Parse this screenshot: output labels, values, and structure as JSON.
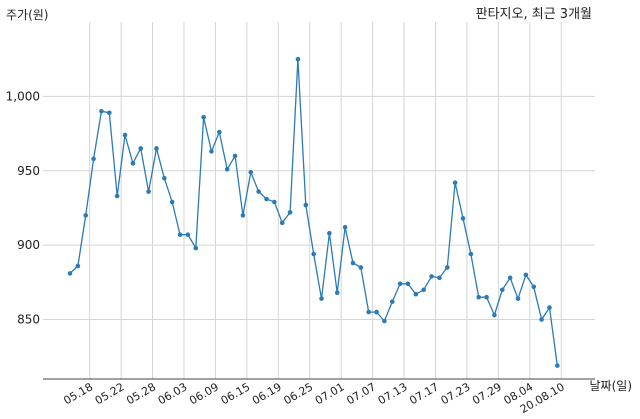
{
  "chart_data": {
    "type": "line",
    "title": "판타지오, 최근 3개월",
    "ylabel": "주가(원)",
    "xlabel": "날짜(일)",
    "ylim": [
      810,
      1050
    ],
    "yticks": [
      850,
      900,
      950,
      1000
    ],
    "ytick_labels": [
      "850",
      "900",
      "950",
      "1,000"
    ],
    "grid": true,
    "colors": {
      "line": "#2c7bb6",
      "grid": "#d5d5d5",
      "axis": "#444444"
    },
    "x_tick_labels": [
      "05.18",
      "05.22",
      "05.28",
      "06.03",
      "06.09",
      "06.15",
      "06.19",
      "06.25",
      "07.01",
      "07.07",
      "07.13",
      "07.17",
      "07.23",
      "07.29",
      "08.04",
      "20.08.10"
    ],
    "x_tick_positions": [
      2.5,
      6.5,
      10.5,
      14.5,
      18.5,
      22.5,
      26.5,
      30.5,
      34.5,
      38.5,
      42.5,
      46.5,
      50.5,
      54.5,
      58.5,
      62.5
    ],
    "series": [
      {
        "values": [
          881,
          886,
          920,
          958,
          990,
          989,
          933,
          974,
          955,
          965,
          936,
          965,
          945,
          929,
          907,
          907,
          898,
          986,
          963,
          976,
          951,
          960,
          920,
          949,
          936,
          931,
          929,
          915,
          922,
          1025,
          927,
          894,
          864,
          908,
          868,
          912,
          888,
          885,
          855,
          855,
          849,
          862,
          874,
          874,
          867,
          870,
          879,
          878,
          885,
          942,
          918,
          894,
          865,
          865,
          853,
          870,
          878,
          864,
          880,
          872,
          850,
          858,
          819
        ]
      }
    ]
  }
}
